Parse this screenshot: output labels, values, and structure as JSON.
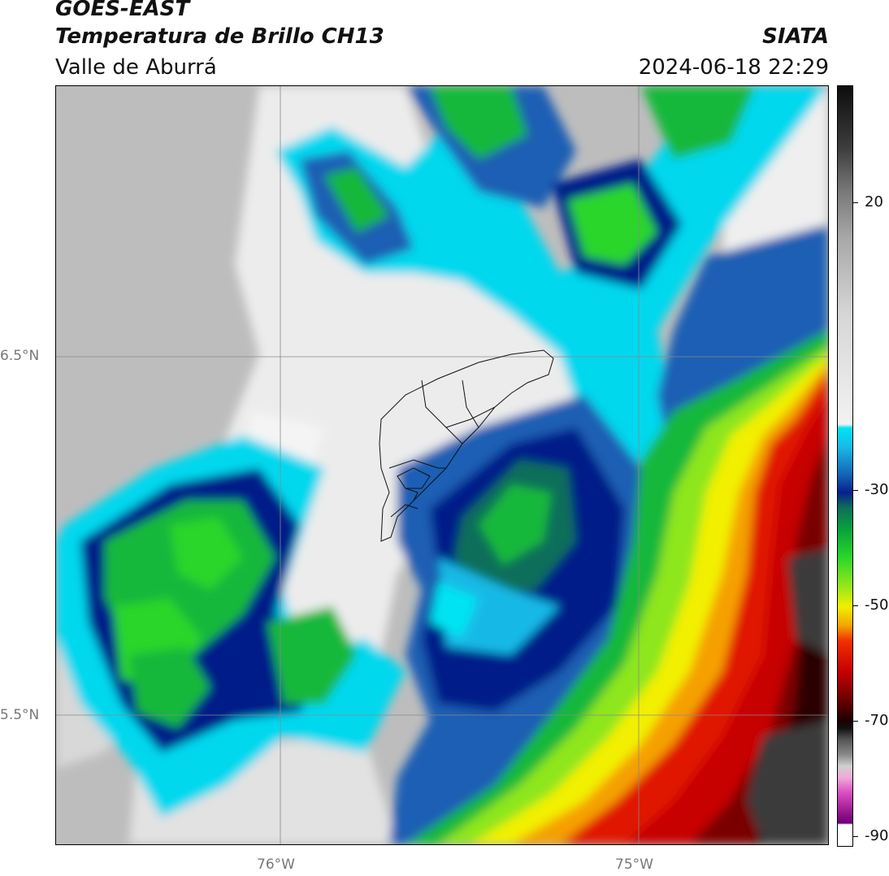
{
  "header": {
    "satellite": "GOES-EAST",
    "product": "Temperatura de Brillo CH13",
    "region": "Valle de Aburrá",
    "organization": "SIATA",
    "timestamp": "2024-06-18 22:29"
  },
  "axes": {
    "lat_labels": [
      "6.5°N",
      "5.5°N"
    ],
    "lon_labels": [
      "76°W",
      "75°W"
    ]
  },
  "colorbar": {
    "ticks": [
      "20",
      "-30",
      "-50",
      "-70",
      "-90"
    ]
  },
  "palette": {
    "clear_warm": "#b8b8b8",
    "cloud_low": "#ececec",
    "cyan": "#00d8ee",
    "blue": "#1a5fb4",
    "navy": "#061c88",
    "green": "#12b83a",
    "lime": "#8ee61a",
    "yellow": "#f2f000",
    "orange": "#f5a000",
    "red": "#e01800",
    "darkred": "#5a0000",
    "overshoot": "#3a3a3a"
  }
}
